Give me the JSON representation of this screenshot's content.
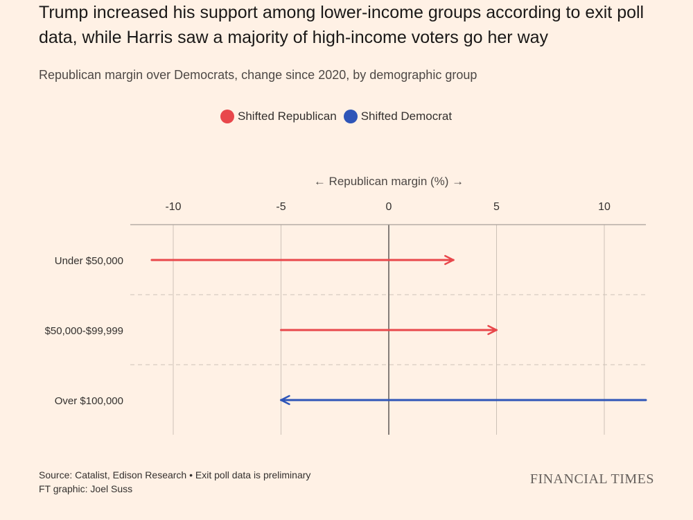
{
  "title": "Trump increased his support among lower-income groups according to exit poll data, while Harris saw a majority of high-income voters go her way",
  "subtitle": "Republican margin over Democrats, change since 2020, by demographic group",
  "legend": {
    "republican": {
      "label": "Shifted Republican",
      "color": "#e8474b"
    },
    "democrat": {
      "label": "Shifted Democrat",
      "color": "#2e55b8"
    }
  },
  "axis_title": "← Republican margin (%) →",
  "footer": {
    "source": "Source: Catalist, Edison Research • Exit poll data is preliminary",
    "credit": "FT graphic: Joel Suss"
  },
  "brand": "FINANCIAL TIMES",
  "chart_data": {
    "type": "arrow",
    "title": "Trump increased his support among lower-income groups according to exit poll data, while Harris saw a majority of high-income voters go her way",
    "subtitle": "Republican margin over Democrats, change since 2020, by demographic group",
    "xlabel": "Republican margin (%)",
    "xlim": [
      -12,
      12
    ],
    "xticks": [
      -10,
      -5,
      0,
      5,
      10
    ],
    "grid": true,
    "legend_position": "top-center",
    "categories": [
      "Under $50,000",
      "$50,000-$99,999",
      "Over $100,000"
    ],
    "series": [
      {
        "category": "Under $50,000",
        "from_2020": -11,
        "to_2024": 3,
        "direction": "Shifted Republican"
      },
      {
        "category": "$50,000-$99,999",
        "from_2020": -5,
        "to_2024": 5,
        "direction": "Shifted Republican"
      },
      {
        "category": "Over $100,000",
        "from_2020": 12,
        "to_2024": -5,
        "direction": "Shifted Democrat"
      }
    ]
  }
}
